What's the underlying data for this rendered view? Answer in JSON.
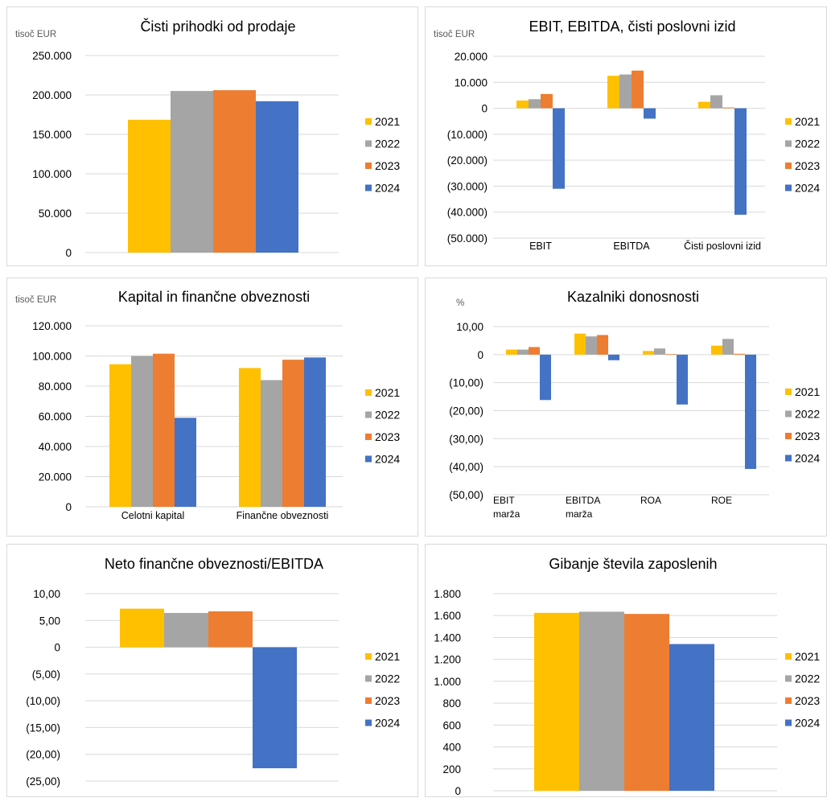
{
  "colors": {
    "2021": "#FFC000",
    "2022": "#A5A5A5",
    "2023": "#ED7D31",
    "2024": "#4472C4",
    "grid": "#d9d9d9",
    "text": "#000000",
    "unit_text": "#595959"
  },
  "legend": [
    "2021",
    "2022",
    "2023",
    "2024"
  ],
  "chart_data": [
    {
      "type": "bar",
      "title": "Čisti prihodki od prodaje",
      "unit": "tisoč EUR",
      "categories": [
        ""
      ],
      "series": [
        {
          "name": "2021",
          "values": [
            168500
          ]
        },
        {
          "name": "2022",
          "values": [
            205000
          ]
        },
        {
          "name": "2023",
          "values": [
            206000
          ]
        },
        {
          "name": "2024",
          "values": [
            192000
          ]
        }
      ],
      "ylim": [
        0,
        250000
      ],
      "yticks": [
        {
          "v": 250000,
          "label": "250.000"
        },
        {
          "v": 200000,
          "label": "200.000"
        },
        {
          "v": 150000,
          "label": "150.000"
        },
        {
          "v": 100000,
          "label": "100.000"
        },
        {
          "v": 50000,
          "label": "50.000"
        },
        {
          "v": 0,
          "label": "0"
        }
      ],
      "legend_position": "right"
    },
    {
      "type": "bar",
      "title": "EBIT, EBITDA, čisti poslovni izid",
      "unit": "tisoč EUR",
      "categories": [
        "EBIT",
        "EBITDA",
        "Čisti poslovni izid"
      ],
      "series": [
        {
          "name": "2021",
          "values": [
            3000,
            12500,
            2500
          ]
        },
        {
          "name": "2022",
          "values": [
            3500,
            13000,
            5000
          ]
        },
        {
          "name": "2023",
          "values": [
            5500,
            14500,
            300
          ]
        },
        {
          "name": "2024",
          "values": [
            -31000,
            -4000,
            -41000
          ]
        }
      ],
      "ylim": [
        -50000,
        20000
      ],
      "yticks": [
        {
          "v": 20000,
          "label": "20.000"
        },
        {
          "v": 10000,
          "label": "10.000"
        },
        {
          "v": 0,
          "label": "0"
        },
        {
          "v": -10000,
          "label": "(10.000)"
        },
        {
          "v": -20000,
          "label": "(20.000)"
        },
        {
          "v": -30000,
          "label": "(30.000)"
        },
        {
          "v": -40000,
          "label": "(40.000)"
        },
        {
          "v": -50000,
          "label": "(50.000)"
        }
      ],
      "legend_position": "right"
    },
    {
      "type": "bar",
      "title": "Kapital in finančne obveznosti",
      "unit": "tisoč EUR",
      "categories": [
        "Celotni kapital",
        "Finančne obveznosti"
      ],
      "series": [
        {
          "name": "2021",
          "values": [
            94500,
            92000
          ]
        },
        {
          "name": "2022",
          "values": [
            100000,
            84000
          ]
        },
        {
          "name": "2023",
          "values": [
            101500,
            97500
          ]
        },
        {
          "name": "2024",
          "values": [
            59000,
            99000
          ]
        }
      ],
      "ylim": [
        0,
        120000
      ],
      "yticks": [
        {
          "v": 120000,
          "label": "120.000"
        },
        {
          "v": 100000,
          "label": "100.000"
        },
        {
          "v": 80000,
          "label": "80.000"
        },
        {
          "v": 60000,
          "label": "60.000"
        },
        {
          "v": 40000,
          "label": "40.000"
        },
        {
          "v": 20000,
          "label": "20.000"
        },
        {
          "v": 0,
          "label": "0"
        }
      ],
      "legend_position": "right"
    },
    {
      "type": "bar",
      "title": "Kazalniki donosnosti",
      "unit": "%",
      "categories": [
        "EBIT marža",
        "EBITDA marža",
        "ROA",
        "ROE"
      ],
      "series": [
        {
          "name": "2021",
          "values": [
            1.8,
            7.5,
            1.3,
            3.2
          ]
        },
        {
          "name": "2022",
          "values": [
            1.8,
            6.5,
            2.2,
            5.6
          ]
        },
        {
          "name": "2023",
          "values": [
            2.7,
            7.0,
            0.2,
            0.3
          ]
        },
        {
          "name": "2024",
          "values": [
            -16.2,
            -2.0,
            -17.8,
            -40.8
          ]
        }
      ],
      "ylim": [
        -50,
        10
      ],
      "yticks": [
        {
          "v": 10,
          "label": "10,00"
        },
        {
          "v": 0,
          "label": "0"
        },
        {
          "v": -10,
          "label": "(10,00)"
        },
        {
          "v": -20,
          "label": "(20,00)"
        },
        {
          "v": -30,
          "label": "(30,00)"
        },
        {
          "v": -40,
          "label": "(40,00)"
        },
        {
          "v": -50,
          "label": "(50,00)"
        }
      ],
      "legend_position": "right"
    },
    {
      "type": "bar",
      "title": "Neto finančne obveznosti/EBITDA",
      "unit": "",
      "categories": [
        ""
      ],
      "series": [
        {
          "name": "2021",
          "values": [
            7.2
          ]
        },
        {
          "name": "2022",
          "values": [
            6.4
          ]
        },
        {
          "name": "2023",
          "values": [
            6.7
          ]
        },
        {
          "name": "2024",
          "values": [
            -22.6
          ]
        }
      ],
      "ylim": [
        -25,
        10
      ],
      "yticks": [
        {
          "v": 10,
          "label": "10,00"
        },
        {
          "v": 5,
          "label": "5,00"
        },
        {
          "v": 0,
          "label": "0"
        },
        {
          "v": -5,
          "label": "(5,00)"
        },
        {
          "v": -10,
          "label": "(10,00)"
        },
        {
          "v": -15,
          "label": "(15,00)"
        },
        {
          "v": -20,
          "label": "(20,00)"
        },
        {
          "v": -25,
          "label": "(25,00)"
        }
      ],
      "legend_position": "right"
    },
    {
      "type": "bar",
      "title": "Gibanje števila zaposlenih",
      "unit": "",
      "categories": [
        ""
      ],
      "series": [
        {
          "name": "2021",
          "values": [
            1625
          ]
        },
        {
          "name": "2022",
          "values": [
            1635
          ]
        },
        {
          "name": "2023",
          "values": [
            1615
          ]
        },
        {
          "name": "2024",
          "values": [
            1340
          ]
        }
      ],
      "ylim": [
        0,
        1800
      ],
      "yticks": [
        {
          "v": 1800,
          "label": "1.800"
        },
        {
          "v": 1600,
          "label": "1.600"
        },
        {
          "v": 1400,
          "label": "1.400"
        },
        {
          "v": 1200,
          "label": "1.200"
        },
        {
          "v": 1000,
          "label": "1.000"
        },
        {
          "v": 800,
          "label": "800"
        },
        {
          "v": 600,
          "label": "600"
        },
        {
          "v": 400,
          "label": "400"
        },
        {
          "v": 200,
          "label": "200"
        },
        {
          "v": 0,
          "label": "0"
        }
      ],
      "legend_position": "right"
    }
  ]
}
